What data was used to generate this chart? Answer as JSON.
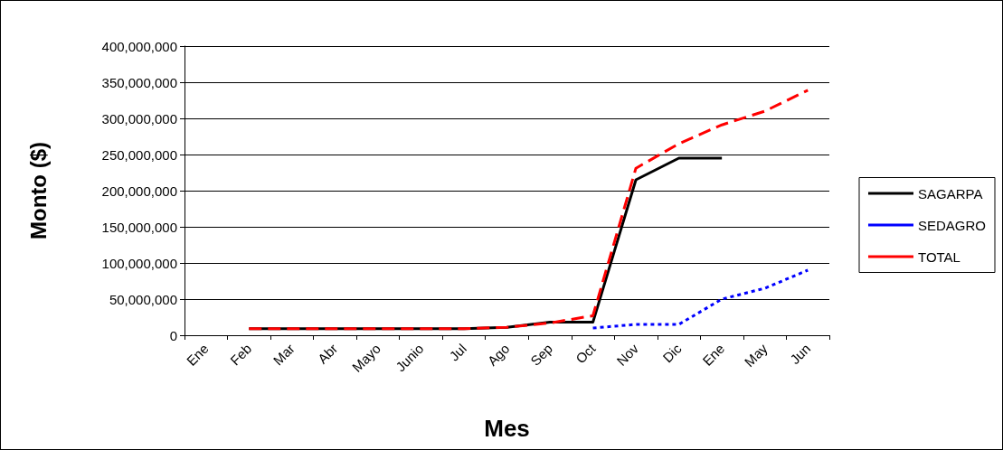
{
  "chart_data": {
    "type": "line",
    "xlabel": "Mes",
    "ylabel": "Monto ($)",
    "categories": [
      "Ene",
      "Feb",
      "Mar",
      "Abr",
      "Mayo",
      "Junio",
      "Jul",
      "Ago",
      "Sep",
      "Oct",
      "Nov",
      "Dic",
      "Ene",
      "May",
      "Jun"
    ],
    "series": [
      {
        "name": "SAGARPA",
        "color": "#000000",
        "line_style": "solid",
        "values": [
          null,
          9000000,
          9000000,
          9000000,
          9000000,
          9000000,
          9000000,
          11000000,
          18000000,
          18000000,
          215000000,
          245000000,
          245000000,
          null,
          null
        ]
      },
      {
        "name": "SEDAGRO",
        "color": "#0000ff",
        "line_style": "dotted",
        "values": [
          null,
          null,
          null,
          null,
          null,
          null,
          null,
          null,
          null,
          10000000,
          15000000,
          15000000,
          50000000,
          65000000,
          90000000
        ]
      },
      {
        "name": "TOTAL",
        "color": "#ff0000",
        "line_style": "dashed",
        "values": [
          null,
          9000000,
          9000000,
          9000000,
          9000000,
          9000000,
          9000000,
          11000000,
          17000000,
          27000000,
          231000000,
          265000000,
          291000000,
          310000000,
          339000000
        ]
      }
    ],
    "ylim": [
      0,
      400000000
    ],
    "yticks": [
      0,
      {
        "value": 50000000,
        "label": "50,000,000"
      },
      {
        "value": 100000000,
        "label": "100,000,000"
      },
      {
        "value": 150000000,
        "label": "150,000,000"
      },
      {
        "value": 200000000,
        "label": "200,000,000"
      },
      {
        "value": 250000000,
        "label": "250,000,000"
      },
      {
        "value": 300000000,
        "label": "300,000,000"
      },
      {
        "value": 350000000,
        "label": "350,000,000"
      },
      {
        "value": 400000000,
        "label": "400,000,000"
      }
    ],
    "grid": "y",
    "legend": "right",
    "marker": "none"
  }
}
